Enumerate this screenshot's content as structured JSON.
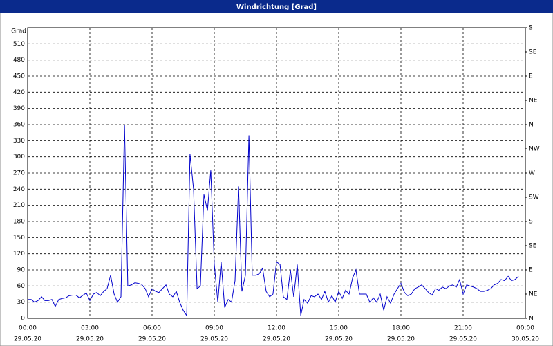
{
  "chart_data": {
    "type": "line",
    "title": "Windrichtung [Grad]",
    "y_label": "Grad",
    "xlim": [
      0,
      24
    ],
    "xticks": [
      {
        "value": 0,
        "label": "00:00"
      },
      {
        "value": 3,
        "label": "03:00"
      },
      {
        "value": 6,
        "label": "06:00"
      },
      {
        "value": 9,
        "label": "09:00"
      },
      {
        "value": 12,
        "label": "12:00"
      },
      {
        "value": 15,
        "label": "15:00"
      },
      {
        "value": 18,
        "label": "18:00"
      },
      {
        "value": 21,
        "label": "21:00"
      },
      {
        "value": 24,
        "label": "00:00"
      }
    ],
    "xtick_dates": [
      "29.05.20",
      "29.05.20",
      "29.05.20",
      "29.05.20",
      "29.05.20",
      "29.05.20",
      "29.05.20",
      "29.05.20",
      "30.05.20"
    ],
    "ylim": [
      0,
      540
    ],
    "yticks": [
      0,
      30,
      60,
      90,
      120,
      150,
      180,
      210,
      240,
      270,
      300,
      330,
      360,
      390,
      420,
      450,
      480,
      510
    ],
    "y2lim": [
      0,
      540
    ],
    "y2ticks": [
      {
        "value": 0,
        "label": "N"
      },
      {
        "value": 45,
        "label": "NE"
      },
      {
        "value": 90,
        "label": "E"
      },
      {
        "value": 135,
        "label": "SE"
      },
      {
        "value": 180,
        "label": "S"
      },
      {
        "value": 225,
        "label": "SW"
      },
      {
        "value": 270,
        "label": "W"
      },
      {
        "value": 315,
        "label": "NW"
      },
      {
        "value": 360,
        "label": "N"
      },
      {
        "value": 405,
        "label": "NE"
      },
      {
        "value": 450,
        "label": "E"
      },
      {
        "value": 495,
        "label": "SE"
      },
      {
        "value": 540,
        "label": "S"
      }
    ],
    "grid": true,
    "series": [
      {
        "color": "#0000cc",
        "x": [
          0,
          0.17,
          0.33,
          0.5,
          0.67,
          0.83,
          1,
          1.17,
          1.33,
          1.5,
          1.67,
          1.83,
          2,
          2.17,
          2.33,
          2.5,
          2.67,
          2.83,
          3,
          3.17,
          3.33,
          3.5,
          3.67,
          3.83,
          4,
          4.17,
          4.33,
          4.5,
          4.67,
          4.83,
          5,
          5.17,
          5.33,
          5.5,
          5.67,
          5.83,
          6,
          6.17,
          6.33,
          6.5,
          6.67,
          6.83,
          7,
          7.17,
          7.33,
          7.5,
          7.67,
          7.83,
          8,
          8.17,
          8.33,
          8.5,
          8.67,
          8.83,
          9,
          9.17,
          9.33,
          9.5,
          9.67,
          9.83,
          10,
          10.17,
          10.33,
          10.5,
          10.67,
          10.83,
          11,
          11.17,
          11.33,
          11.5,
          11.67,
          11.83,
          12,
          12.17,
          12.33,
          12.5,
          12.67,
          12.83,
          13,
          13.17,
          13.33,
          13.5,
          13.67,
          13.83,
          14,
          14.17,
          14.33,
          14.5,
          14.67,
          14.83,
          15,
          15.17,
          15.33,
          15.5,
          15.67,
          15.83,
          16,
          16.17,
          16.33,
          16.5,
          16.67,
          16.83,
          17,
          17.17,
          17.33,
          17.5,
          17.67,
          17.83,
          18,
          18.17,
          18.33,
          18.5,
          18.67,
          18.83,
          19,
          19.17,
          19.33,
          19.5,
          19.67,
          19.83,
          20,
          20.17,
          20.33,
          20.5,
          20.67,
          20.83,
          21,
          21.17,
          21.33,
          21.5,
          21.67,
          21.83,
          22,
          22.17,
          22.33,
          22.5,
          22.67,
          22.83,
          23,
          23.17,
          23.33,
          23.5,
          23.67
        ],
        "values": [
          35,
          35,
          30,
          33,
          40,
          33,
          33,
          35,
          22,
          35,
          37,
          38,
          42,
          43,
          43,
          38,
          43,
          47,
          33,
          45,
          48,
          42,
          50,
          55,
          80,
          45,
          30,
          40,
          360,
          60,
          62,
          66,
          65,
          63,
          55,
          40,
          55,
          50,
          48,
          55,
          62,
          45,
          40,
          50,
          30,
          15,
          5,
          305,
          240,
          55,
          60,
          230,
          200,
          275,
          100,
          30,
          105,
          20,
          35,
          30,
          70,
          245,
          50,
          80,
          340,
          80,
          80,
          83,
          93,
          50,
          40,
          45,
          105,
          100,
          40,
          35,
          90,
          40,
          100,
          5,
          35,
          28,
          42,
          40,
          45,
          35,
          50,
          30,
          42,
          30,
          50,
          37,
          52,
          45,
          75,
          90,
          45,
          45,
          45,
          30,
          38,
          30,
          45,
          15,
          40,
          28,
          45,
          55,
          65,
          48,
          42,
          45,
          55,
          58,
          62,
          55,
          48,
          43,
          55,
          52,
          58,
          55,
          60,
          62,
          58,
          72,
          45,
          62,
          60,
          58,
          55,
          50,
          50,
          52,
          55,
          62,
          65,
          72,
          70,
          78,
          70,
          72,
          78
        ]
      }
    ]
  }
}
